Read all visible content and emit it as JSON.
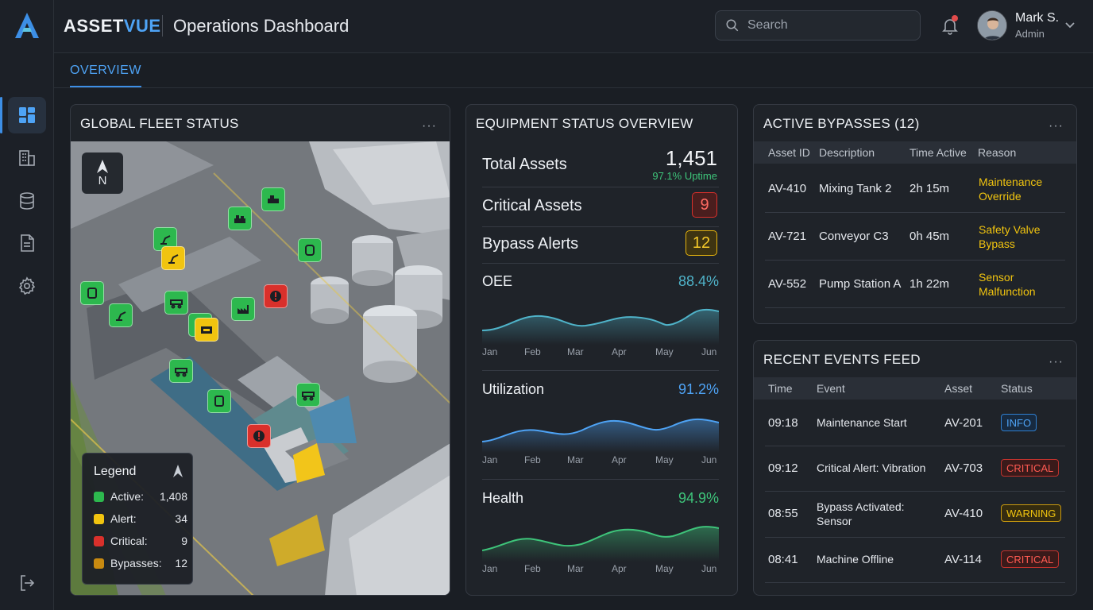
{
  "app": {
    "brand_a": "ASSET",
    "brand_b": "VUE",
    "title": "Operations Dashboard"
  },
  "search": {
    "placeholder": "Search"
  },
  "user": {
    "name": "Mark S.",
    "role": "Admin"
  },
  "tabs": [
    {
      "label": "OVERVIEW",
      "active": true
    }
  ],
  "sidebar": {
    "items": [
      "dashboard-icon",
      "building-icon",
      "database-icon",
      "document-icon",
      "gear-icon"
    ],
    "bottom": "logout-icon"
  },
  "fleet": {
    "title": "GLOBAL FLEET STATUS",
    "more": "···",
    "compass": "N",
    "legend": {
      "title": "Legend",
      "items": [
        {
          "label": "Active:",
          "value": "1,408",
          "color": "#2db84e"
        },
        {
          "label": "Alert:",
          "value": "34",
          "color": "#f1c40f"
        },
        {
          "label": "Critical:",
          "value": "9",
          "color": "#d9302b"
        },
        {
          "label": "Bypasses:",
          "value": "12",
          "color": "#c88a10"
        }
      ]
    }
  },
  "equipment": {
    "title": "EQUIPMENT STATUS OVERVIEW",
    "total_label": "Total Assets",
    "total_value": "1,451",
    "uptime": "97.1% Uptime",
    "critical_label": "Critical Assets",
    "critical_value": "9",
    "bypass_label": "Bypass Alerts",
    "bypass_value": "12",
    "months": [
      "Jan",
      "Feb",
      "Mar",
      "Apr",
      "May",
      "Jun"
    ],
    "oee": {
      "label": "OEE",
      "value": "88.4%",
      "color": "#4fb3c9"
    },
    "utilization": {
      "label": "Utilization",
      "value": "91.2%",
      "color": "#4ea3f5"
    },
    "health": {
      "label": "Health",
      "value": "94.9%",
      "color": "#3ec47a"
    }
  },
  "bypasses": {
    "title": "ACTIVE BYPASSES (12)",
    "more": "···",
    "headers": [
      "Asset ID",
      "Description",
      "Time Active",
      "Reason"
    ],
    "rows": [
      {
        "id": "AV-410",
        "desc": "Mixing Tank 2",
        "time": "2h 15m",
        "reason1": "Maintenance",
        "reason2": "Override"
      },
      {
        "id": "AV-721",
        "desc": "Conveyor C3",
        "time": "0h 45m",
        "reason1": "Safety Valve",
        "reason2": "Bypass"
      },
      {
        "id": "AV-552",
        "desc": "Pump Station A",
        "time": "1h 22m",
        "reason1": "Sensor",
        "reason2": "Malfunction"
      }
    ]
  },
  "events": {
    "title": "RECENT EVENTS FEED",
    "more": "···",
    "headers": [
      "Time",
      "Event",
      "Asset",
      "Status"
    ],
    "rows": [
      {
        "time": "09:18",
        "event1": "Maintenance Start",
        "event2": "",
        "asset": "AV-201",
        "status": "INFO"
      },
      {
        "time": "09:12",
        "event1": "Critical Alert: Vibration",
        "event2": "",
        "asset": "AV-703",
        "status": "CRITICAL"
      },
      {
        "time": "08:55",
        "event1": "Bypass Activated:",
        "event2": "Sensor",
        "asset": "AV-410",
        "status": "WARNING"
      },
      {
        "time": "08:41",
        "event1": "Machine Offline",
        "event2": "",
        "asset": "AV-114",
        "status": "CRITICAL"
      }
    ]
  }
}
